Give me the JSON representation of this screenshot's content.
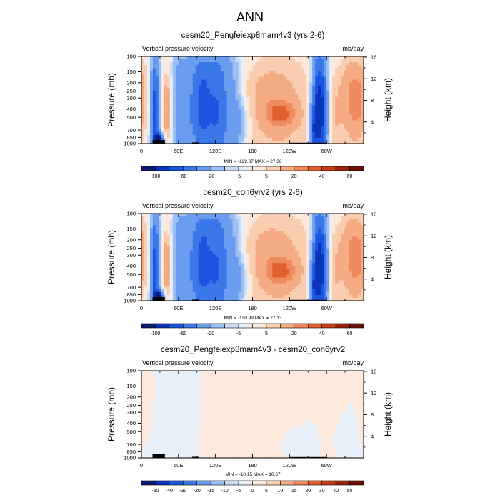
{
  "figure": {
    "title": "ANN"
  },
  "chart_data": [
    {
      "type": "heatmap",
      "title": "cesm20_Pengfeiexp8mam4v3 (yrs 2-6)",
      "left_string": "Vertical pressure velocity",
      "right_string": "mb/day",
      "ylabel": "Pressure (mb)",
      "ylabel_right": "Height (km)",
      "x_ticks": [
        "0",
        "60E",
        "120E",
        "180",
        "120W",
        "60W"
      ],
      "y_ticks": [
        "100",
        "150",
        "200",
        "250",
        "300",
        "400",
        "500",
        "700",
        "850",
        "1000"
      ],
      "y_ticks_right": [
        "4",
        "8",
        "12",
        "16"
      ],
      "stats": "MIN = -129.87  MAX =  27.36",
      "colorbar_labels": [
        "-100",
        "-60",
        "-20",
        "-5",
        "5",
        "20",
        "40",
        "60"
      ],
      "colorbar_colors": [
        "#0a1a70",
        "#0b33b8",
        "#1a55e0",
        "#3a78ea",
        "#6a9cf0",
        "#9ebff3",
        "#c8dbf6",
        "#e7eff9",
        "#fde9dc",
        "#f9cdb0",
        "#f5ab84",
        "#ef8a5c",
        "#e2602f",
        "#c63d12",
        "#98220a",
        "#6b1005"
      ],
      "ylim": [
        1000,
        100
      ],
      "xlim": [
        0,
        360
      ]
    },
    {
      "type": "heatmap",
      "title": "cesm20_con6yrv2 (yrs 2-6)",
      "left_string": "Vertical pressure velocity",
      "right_string": "mb/day",
      "ylabel": "Pressure (mb)",
      "ylabel_right": "Height (km)",
      "x_ticks": [
        "0",
        "60E",
        "120E",
        "180",
        "120W",
        "60W"
      ],
      "y_ticks": [
        "100",
        "150",
        "200",
        "250",
        "300",
        "400",
        "500",
        "700",
        "850",
        "1000"
      ],
      "y_ticks_right": [
        "4",
        "8",
        "12",
        "16"
      ],
      "stats": "MIN = -130.99  MAX =  27.13",
      "colorbar_labels": [
        "-100",
        "-60",
        "-20",
        "-5",
        "5",
        "20",
        "40",
        "60"
      ],
      "colorbar_colors": [
        "#0a1a70",
        "#0b33b8",
        "#1a55e0",
        "#3a78ea",
        "#6a9cf0",
        "#9ebff3",
        "#c8dbf6",
        "#e7eff9",
        "#fde9dc",
        "#f9cdb0",
        "#f5ab84",
        "#ef8a5c",
        "#e2602f",
        "#c63d12",
        "#98220a",
        "#6b1005"
      ],
      "ylim": [
        1000,
        100
      ],
      "xlim": [
        0,
        360
      ]
    },
    {
      "type": "heatmap",
      "title": "cesm20_Pengfeiexp8mam4v3 - cesm20_con6yrv2",
      "left_string": "Vertical pressure velocity",
      "right_string": "mb/day",
      "ylabel": "Pressure (mb)",
      "ylabel_right": "Height (km)",
      "x_ticks": [
        "0",
        "60E",
        "120E",
        "180",
        "120W",
        "60W"
      ],
      "y_ticks": [
        "100",
        "150",
        "200",
        "250",
        "300",
        "400",
        "500",
        "700",
        "850",
        "1000"
      ],
      "y_ticks_right": [
        "4",
        "8",
        "12",
        "16"
      ],
      "stats": "MIN = -10.15  MAX =  10.67",
      "colorbar_labels": [
        "-50",
        "-40",
        "-30",
        "-20",
        "-15",
        "-10",
        "-5",
        "0",
        "5",
        "10",
        "15",
        "20",
        "30",
        "40",
        "50"
      ],
      "colorbar_colors": [
        "#0a1a70",
        "#0b33b8",
        "#1a55e0",
        "#3a78ea",
        "#6a9cf0",
        "#9ebff3",
        "#c8dbf6",
        "#e7eff9",
        "#fde9dc",
        "#f9cdb0",
        "#f5ab84",
        "#ef8a5c",
        "#e2602f",
        "#c63d12",
        "#98220a",
        "#6b1005"
      ],
      "ylim": [
        1000,
        100
      ],
      "xlim": [
        0,
        360
      ]
    }
  ]
}
